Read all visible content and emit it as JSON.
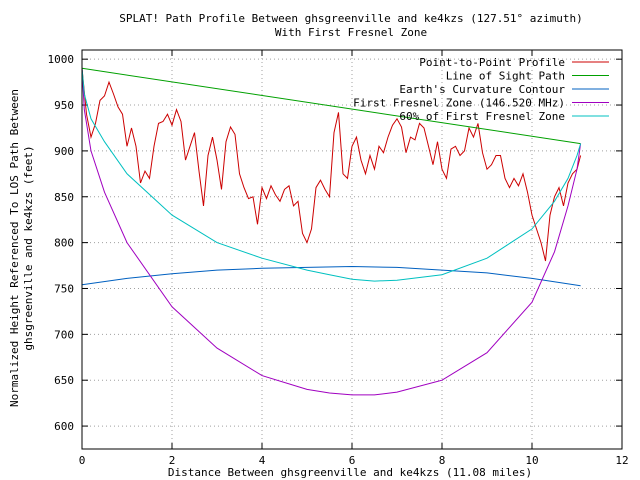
{
  "chart_data": {
    "type": "line",
    "title": "SPLAT! Path Profile Between ghsgreenville and ke4kzs (127.51° azimuth)",
    "subtitle": "With First Fresnel Zone",
    "xlabel": "Distance Between ghsgreenville and ke4kzs (11.08 miles)",
    "ylabel": "Normalized Height Referenced To LOS Path Between",
    "ylabel2": "ghsgreenville and ke4kzs (feet)",
    "xlim": [
      0,
      12
    ],
    "ylim": [
      575,
      1010
    ],
    "xticks": [
      0,
      2,
      4,
      6,
      8,
      10,
      12
    ],
    "yticks": [
      600,
      650,
      700,
      750,
      800,
      850,
      900,
      950,
      1000
    ],
    "grid": true,
    "legend_position": "top-right",
    "series": [
      {
        "name": "Point-to-Point Profile",
        "color": "#cc0000",
        "x": [
          0,
          0.1,
          0.2,
          0.3,
          0.4,
          0.5,
          0.6,
          0.7,
          0.8,
          0.9,
          1.0,
          1.1,
          1.2,
          1.3,
          1.4,
          1.5,
          1.6,
          1.7,
          1.8,
          1.9,
          2.0,
          2.1,
          2.2,
          2.3,
          2.4,
          2.5,
          2.6,
          2.7,
          2.8,
          2.9,
          3.0,
          3.1,
          3.2,
          3.3,
          3.4,
          3.5,
          3.6,
          3.7,
          3.8,
          3.9,
          4.0,
          4.1,
          4.2,
          4.3,
          4.4,
          4.5,
          4.6,
          4.7,
          4.8,
          4.9,
          5.0,
          5.1,
          5.2,
          5.3,
          5.4,
          5.5,
          5.6,
          5.7,
          5.8,
          5.9,
          6.0,
          6.1,
          6.2,
          6.3,
          6.4,
          6.5,
          6.6,
          6.7,
          6.8,
          6.9,
          7.0,
          7.1,
          7.2,
          7.3,
          7.4,
          7.5,
          7.6,
          7.7,
          7.8,
          7.9,
          8.0,
          8.1,
          8.2,
          8.3,
          8.4,
          8.5,
          8.6,
          8.7,
          8.8,
          8.9,
          9.0,
          9.1,
          9.2,
          9.3,
          9.4,
          9.5,
          9.6,
          9.7,
          9.8,
          9.9,
          10.0,
          10.1,
          10.2,
          10.3,
          10.4,
          10.5,
          10.6,
          10.7,
          10.8,
          10.9,
          11.0,
          11.08
        ],
        "y": [
          990,
          940,
          915,
          930,
          955,
          960,
          975,
          962,
          948,
          940,
          905,
          925,
          905,
          865,
          878,
          870,
          905,
          930,
          932,
          940,
          928,
          945,
          932,
          890,
          905,
          920,
          878,
          840,
          895,
          915,
          890,
          858,
          910,
          926,
          918,
          875,
          860,
          848,
          850,
          820,
          860,
          848,
          862,
          852,
          845,
          858,
          862,
          840,
          845,
          810,
          800,
          815,
          860,
          868,
          858,
          850,
          920,
          942,
          875,
          870,
          905,
          915,
          890,
          875,
          895,
          880,
          905,
          898,
          915,
          928,
          935,
          926,
          898,
          915,
          912,
          930,
          925,
          905,
          885,
          910,
          880,
          870,
          902,
          905,
          895,
          900,
          925,
          915,
          930,
          898,
          880,
          885,
          895,
          895,
          870,
          860,
          870,
          862,
          875,
          855,
          830,
          815,
          800,
          780,
          830,
          850,
          860,
          840,
          865,
          875,
          880,
          895
        ]
      },
      {
        "name": "Line of Sight Path",
        "color": "#00a000",
        "x": [
          0,
          11.08
        ],
        "y": [
          990,
          908
        ]
      },
      {
        "name": "Earth's Curvature Contour",
        "color": "#0060c0",
        "x": [
          0,
          1,
          2,
          3,
          4,
          5,
          6,
          7,
          8,
          9,
          10,
          11.08
        ],
        "y": [
          754,
          761,
          766,
          770,
          772,
          773,
          774,
          773,
          770,
          767,
          761,
          753
        ]
      },
      {
        "name": "First Fresnel Zone (146.520 MHz)",
        "color": "#a000c0",
        "x": [
          0,
          0.05,
          0.2,
          0.5,
          1,
          2,
          3,
          4,
          5,
          5.5,
          6,
          6.5,
          7,
          8,
          9,
          10,
          10.5,
          10.8,
          11.0,
          11.08
        ],
        "y": [
          990,
          945,
          900,
          855,
          800,
          730,
          685,
          655,
          640,
          636,
          634,
          634,
          637,
          650,
          680,
          735,
          790,
          840,
          880,
          908
        ]
      },
      {
        "name": "60% of First Fresnel Zone",
        "color": "#00c0c0",
        "x": [
          0,
          0.05,
          0.2,
          0.5,
          1,
          2,
          3,
          4,
          5,
          5.5,
          6,
          6.5,
          7,
          8,
          9,
          10,
          10.5,
          10.8,
          11.0,
          11.08
        ],
        "y": [
          990,
          962,
          935,
          910,
          875,
          830,
          800,
          783,
          770,
          765,
          760,
          758,
          759,
          765,
          783,
          815,
          845,
          870,
          895,
          908
        ]
      }
    ]
  }
}
